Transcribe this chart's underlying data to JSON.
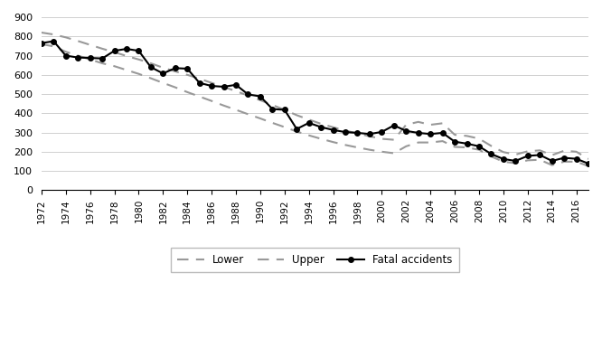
{
  "years": [
    1972,
    1973,
    1974,
    1975,
    1976,
    1977,
    1978,
    1979,
    1980,
    1981,
    1982,
    1983,
    1984,
    1985,
    1986,
    1987,
    1988,
    1989,
    1990,
    1991,
    1992,
    1993,
    1994,
    1995,
    1996,
    1997,
    1998,
    1999,
    2000,
    2001,
    2002,
    2003,
    2004,
    2005,
    2006,
    2007,
    2008,
    2009,
    2010,
    2011,
    2012,
    2013,
    2014,
    2015,
    2016,
    2017
  ],
  "fatal_accidents": [
    765,
    775,
    700,
    690,
    688,
    685,
    725,
    735,
    725,
    640,
    607,
    635,
    632,
    558,
    542,
    538,
    548,
    498,
    488,
    422,
    418,
    318,
    350,
    328,
    313,
    302,
    298,
    292,
    303,
    337,
    308,
    298,
    292,
    298,
    252,
    242,
    228,
    188,
    162,
    152,
    178,
    183,
    152,
    168,
    163,
    138
  ],
  "lower": [
    760,
    748,
    720,
    700,
    680,
    660,
    645,
    625,
    605,
    582,
    558,
    535,
    510,
    487,
    464,
    440,
    418,
    395,
    373,
    350,
    328,
    305,
    285,
    267,
    250,
    235,
    222,
    210,
    200,
    192,
    228,
    248,
    248,
    255,
    225,
    222,
    210,
    175,
    148,
    140,
    155,
    158,
    130,
    148,
    148,
    125
  ],
  "upper": [
    820,
    810,
    795,
    776,
    756,
    736,
    718,
    698,
    680,
    660,
    637,
    618,
    600,
    580,
    558,
    537,
    515,
    492,
    468,
    443,
    418,
    390,
    367,
    345,
    327,
    310,
    295,
    280,
    267,
    262,
    340,
    355,
    340,
    348,
    288,
    282,
    268,
    230,
    198,
    185,
    202,
    207,
    182,
    205,
    200,
    162
  ],
  "ylim": [
    0,
    900
  ],
  "yticks": [
    0,
    100,
    200,
    300,
    400,
    500,
    600,
    700,
    800,
    900
  ],
  "line_color": "#000000",
  "band_color": "#999999",
  "marker": "o",
  "markersize": 4,
  "linewidth": 1.5,
  "band_linewidth": 1.5,
  "band_linestyle": "--",
  "legend_labels": [
    "Lower",
    "Upper",
    "Fatal accidents"
  ],
  "background_color": "#ffffff",
  "grid_color": "#d0d0d0",
  "xtick_fontsize": 7.5,
  "ytick_fontsize": 8
}
